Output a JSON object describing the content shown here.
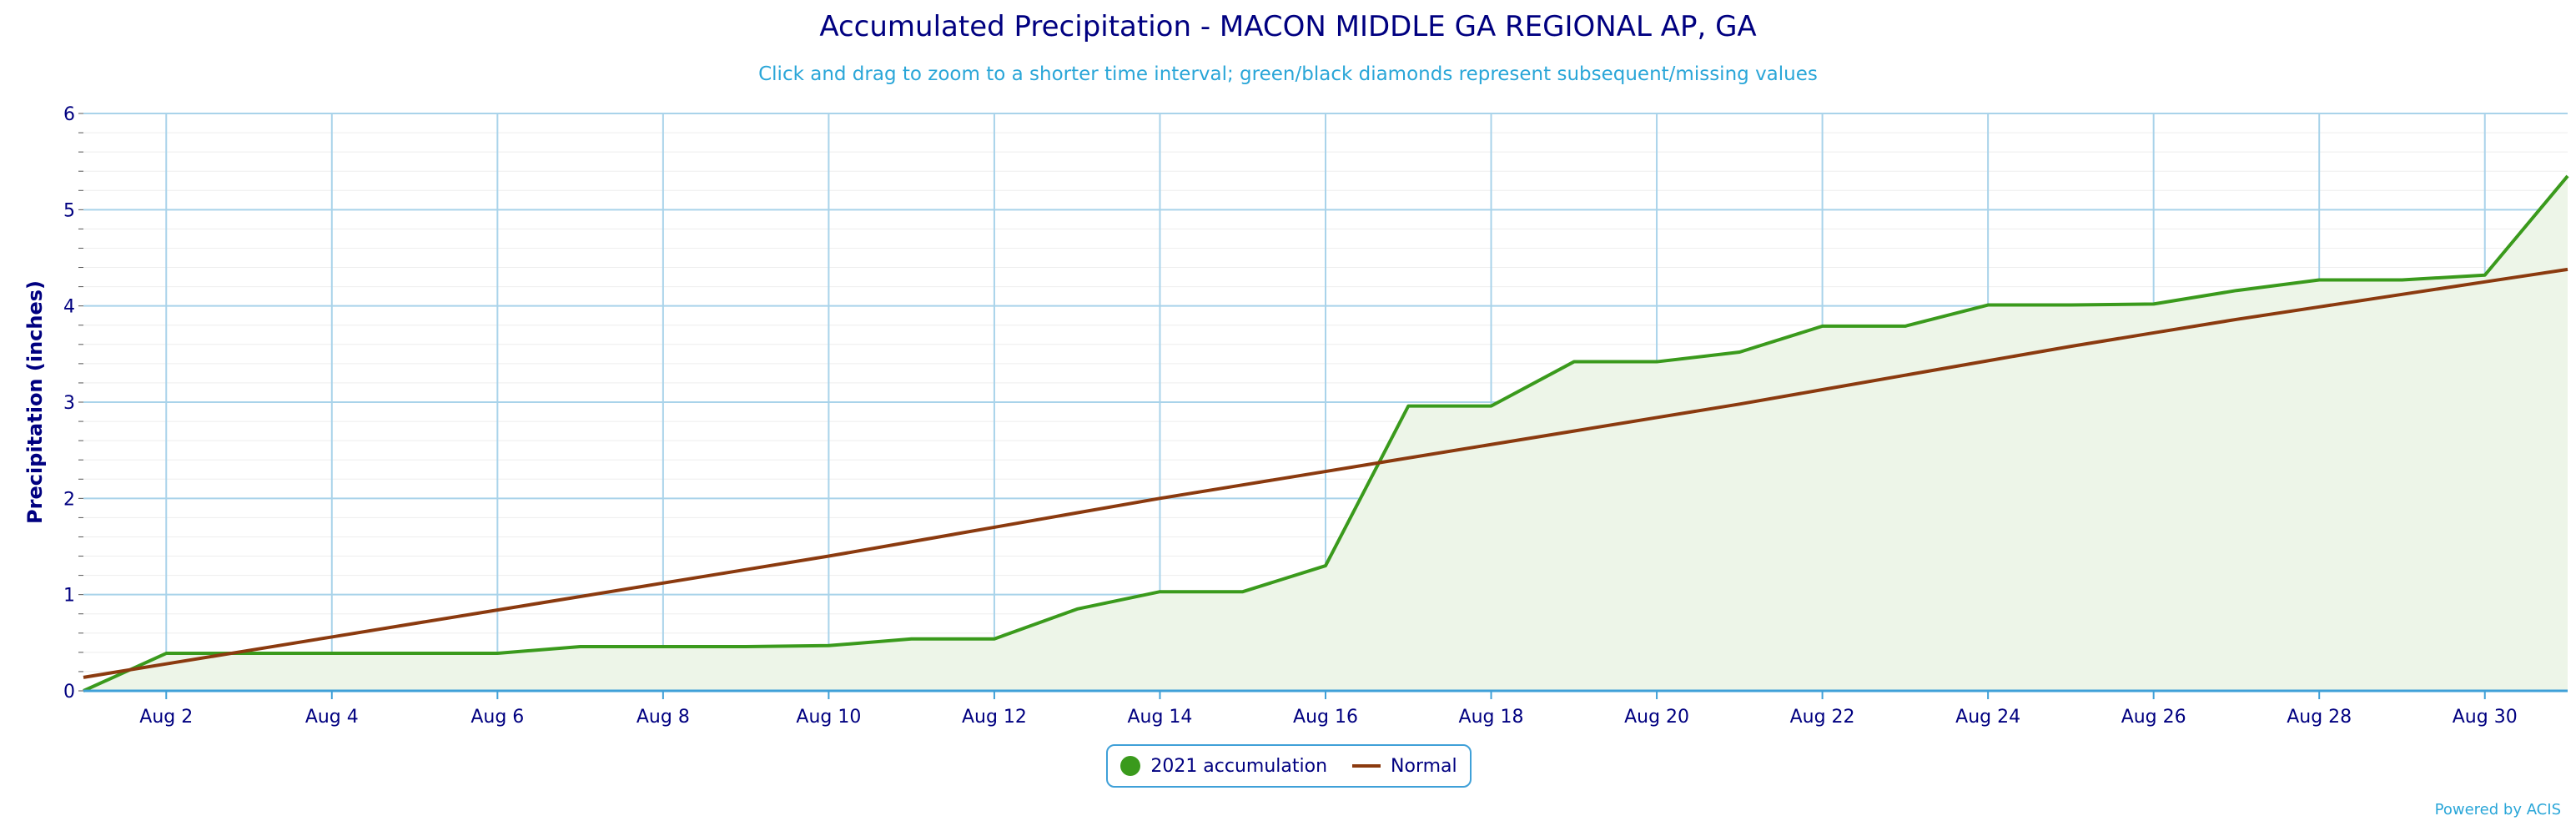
{
  "chart_data": {
    "type": "area",
    "title": "Accumulated Precipitation - MACON MIDDLE GA REGIONAL AP, GA",
    "subtitle": "Click and drag to zoom to a shorter time interval; green/black diamonds represent subsequent/missing values",
    "ylabel": "Precipitation (inches)",
    "xlabel": "",
    "ylim": [
      0,
      6
    ],
    "yticks": [
      "0",
      "1",
      "2",
      "3",
      "4",
      "5",
      "6"
    ],
    "xticks": [
      "Aug 2",
      "Aug 4",
      "Aug 6",
      "Aug 8",
      "Aug 10",
      "Aug 12",
      "Aug 14",
      "Aug 16",
      "Aug 18",
      "Aug 20",
      "Aug 22",
      "Aug 24",
      "Aug 26",
      "Aug 28",
      "Aug 30"
    ],
    "x": [
      "Aug 1",
      "Aug 2",
      "Aug 3",
      "Aug 4",
      "Aug 5",
      "Aug 6",
      "Aug 7",
      "Aug 8",
      "Aug 9",
      "Aug 10",
      "Aug 11",
      "Aug 12",
      "Aug 13",
      "Aug 14",
      "Aug 15",
      "Aug 16",
      "Aug 17",
      "Aug 18",
      "Aug 19",
      "Aug 20",
      "Aug 21",
      "Aug 22",
      "Aug 23",
      "Aug 24",
      "Aug 25",
      "Aug 26",
      "Aug 27",
      "Aug 28",
      "Aug 29",
      "Aug 30",
      "Aug 31"
    ],
    "grid": true,
    "legend_position": "bottom-center",
    "series": [
      {
        "name": "2021 accumulation",
        "type": "area",
        "color": "#3a9a1c",
        "fill": "#edf5e8",
        "values": [
          0.0,
          0.39,
          0.39,
          0.39,
          0.39,
          0.39,
          0.46,
          0.46,
          0.46,
          0.47,
          0.54,
          0.54,
          0.85,
          1.03,
          1.03,
          1.3,
          2.96,
          2.96,
          3.42,
          3.42,
          3.52,
          3.79,
          3.79,
          4.01,
          4.01,
          4.02,
          4.16,
          4.27,
          4.27,
          4.32,
          5.35
        ]
      },
      {
        "name": "Normal",
        "type": "line",
        "color": "#8b3a0f",
        "values": [
          0.14,
          0.28,
          0.42,
          0.56,
          0.7,
          0.84,
          0.98,
          1.12,
          1.26,
          1.4,
          1.55,
          1.7,
          1.85,
          2.0,
          2.14,
          2.28,
          2.42,
          2.56,
          2.7,
          2.84,
          2.98,
          3.13,
          3.28,
          3.43,
          3.58,
          3.72,
          3.86,
          3.99,
          4.12,
          4.25,
          4.38
        ]
      }
    ]
  },
  "credits": "Powered by ACIS"
}
